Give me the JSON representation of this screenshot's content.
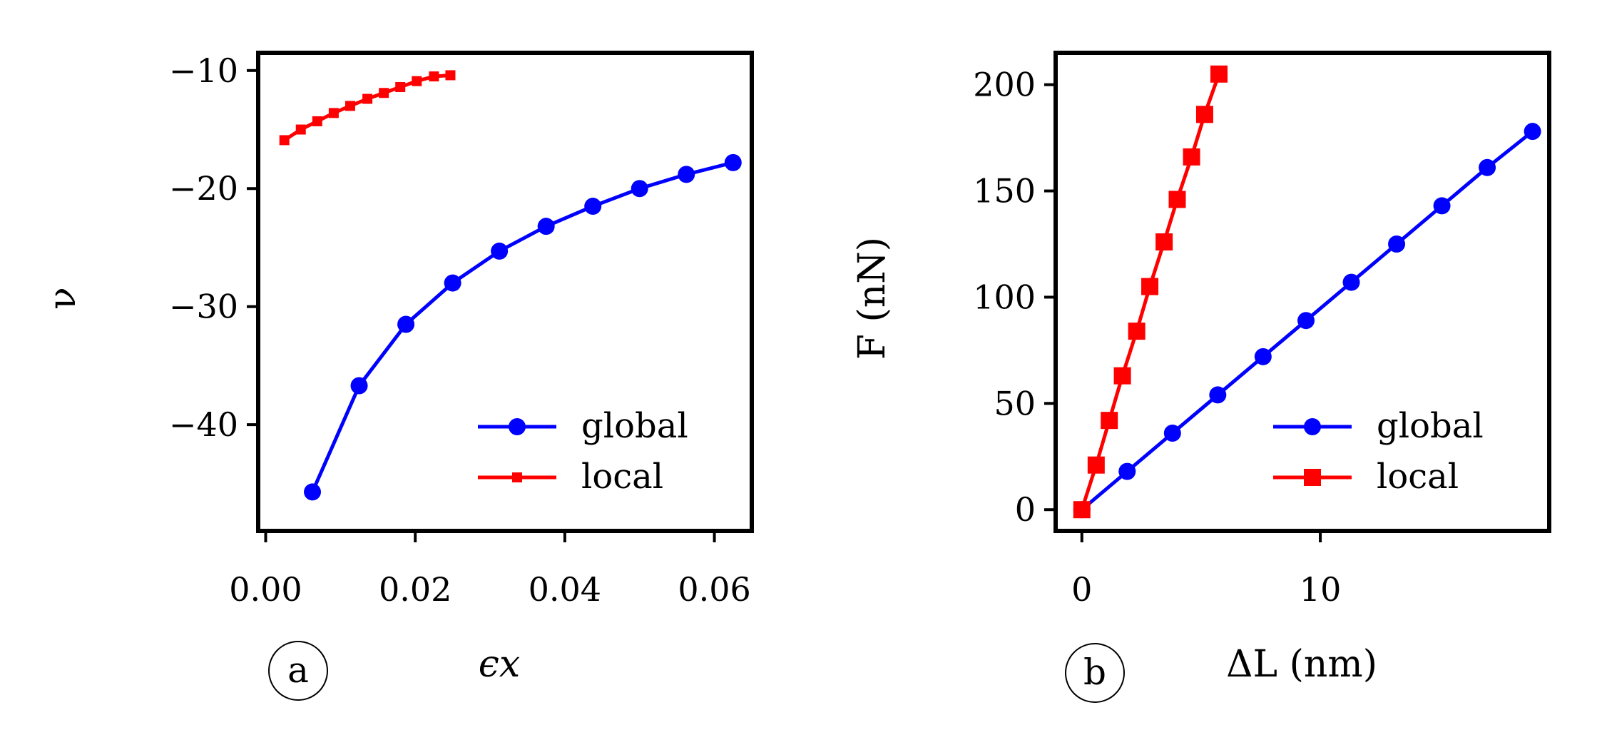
{
  "chart_data": [
    {
      "type": "line",
      "panel_label": "a",
      "xlabel": "ϵx",
      "ylabel": "ν",
      "xlim": [
        -0.001,
        0.065
      ],
      "ylim": [
        -49,
        -8.5
      ],
      "xticks": [
        0.0,
        0.02,
        0.04,
        0.06
      ],
      "xtick_labels": [
        "0.00",
        "0.02",
        "0.04",
        "0.06"
      ],
      "yticks": [
        -10,
        -20,
        -30,
        -40
      ],
      "ytick_labels": [
        "−10",
        "−20",
        "−30",
        "−40"
      ],
      "grid": false,
      "legend_position": "lower-right",
      "series": [
        {
          "name": "global",
          "color": "#0000ff",
          "marker": "circle",
          "x": [
            0.00625,
            0.0125,
            0.01875,
            0.025,
            0.03125,
            0.0375,
            0.04375,
            0.05,
            0.05625,
            0.0625
          ],
          "y": [
            -45.7,
            -36.7,
            -31.5,
            -28.0,
            -25.3,
            -23.2,
            -21.5,
            -20.0,
            -18.8,
            -17.8
          ]
        },
        {
          "name": "local",
          "color": "#ff0000",
          "marker": "small-square",
          "x": [
            0.0025,
            0.0047,
            0.0069,
            0.0091,
            0.0113,
            0.0136,
            0.0158,
            0.018,
            0.0202,
            0.0225,
            0.0247
          ],
          "y": [
            -15.9,
            -15.0,
            -14.3,
            -13.6,
            -13.0,
            -12.4,
            -11.9,
            -11.4,
            -10.9,
            -10.5,
            -10.4
          ]
        }
      ]
    },
    {
      "type": "line",
      "panel_label": "b",
      "xlabel": "ΔL (nm)",
      "ylabel": "F (nN)",
      "xlim": [
        -1.1,
        19.6
      ],
      "ylim": [
        -10,
        215
      ],
      "xticks": [
        0,
        10
      ],
      "xtick_labels": [
        "0",
        "10"
      ],
      "yticks": [
        0,
        50,
        100,
        150,
        200
      ],
      "ytick_labels": [
        "0",
        "50",
        "100",
        "150",
        "200"
      ],
      "grid": false,
      "legend_position": "lower-right",
      "series": [
        {
          "name": "global",
          "color": "#0000ff",
          "marker": "circle",
          "x": [
            0,
            1.9,
            3.8,
            5.7,
            7.6,
            9.4,
            11.3,
            13.2,
            15.1,
            17.0,
            18.9
          ],
          "y": [
            0,
            18,
            36,
            54,
            72,
            89,
            107,
            125,
            143,
            161,
            178
          ]
        },
        {
          "name": "local",
          "color": "#ff0000",
          "marker": "square",
          "x": [
            0,
            0.6,
            1.15,
            1.7,
            2.3,
            2.85,
            3.45,
            4.0,
            4.6,
            5.15,
            5.75
          ],
          "y": [
            0,
            21,
            42,
            63,
            84,
            105,
            126,
            146,
            166,
            186,
            205
          ]
        }
      ]
    }
  ]
}
